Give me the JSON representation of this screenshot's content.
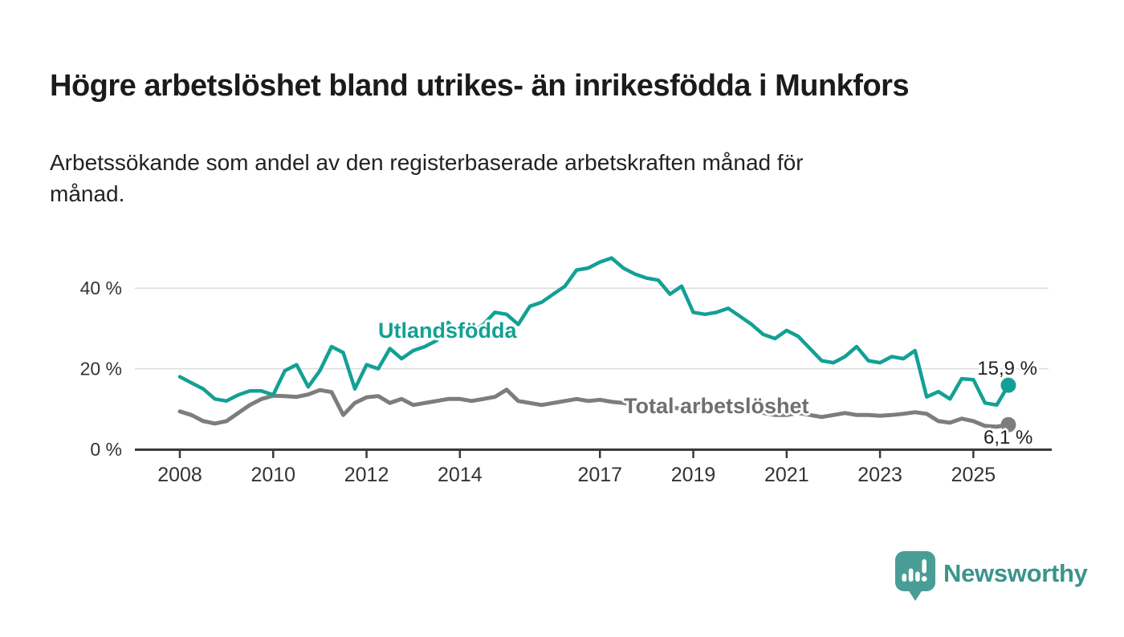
{
  "title": "Högre arbetslöshet bland utrikes- än inrikesfödda i Munkfors",
  "subtitle": "Arbetssökande som andel av den registerbaserade arbetskraften månad för månad.",
  "subtitle_lines": {
    "line1": "Arbetssökande som andel av den registerbaserade arbetskraften månad för",
    "line2": "månad."
  },
  "colors": {
    "foreign_line": "#13a094",
    "total_line": "#7d7d7d",
    "total_label": "#6f6f6f",
    "axis": "#3a3a3a",
    "tick_text": "#333333",
    "grid": "#dcdcdc",
    "end_label_text": "#1f1f1f",
    "brand_icon": "#4a9d96",
    "brand_text": "#3a948c",
    "title_text": "#1b1b1b"
  },
  "footer": {
    "brand": "Newsworthy"
  },
  "chart_data": {
    "type": "line",
    "title": "Högre arbetslöshet bland utrikes- än inrikesfödda i Munkfors",
    "subtitle": "Arbetssökande som andel av den registerbaserade arbetskraften månad för månad.",
    "xlabel": "",
    "ylabel": "",
    "ylim": [
      0,
      50
    ],
    "xlim": [
      2007.8,
      2026.4
    ],
    "grid": "horizontal",
    "legend_position": "inline-labels",
    "x_ticks": [
      2008,
      2010,
      2012,
      2014,
      2017,
      2019,
      2021,
      2023,
      2025
    ],
    "x_tick_labels": [
      "2008",
      "2010",
      "2012",
      "2014",
      "2017",
      "2019",
      "2021",
      "2023",
      "2025"
    ],
    "y_ticks": [
      0,
      20,
      40
    ],
    "y_tick_labels": [
      "0 %",
      "20 %",
      "40 %"
    ],
    "x": [
      2008.0,
      2008.25,
      2008.5,
      2008.75,
      2009.0,
      2009.25,
      2009.5,
      2009.75,
      2010.0,
      2010.25,
      2010.5,
      2010.75,
      2011.0,
      2011.25,
      2011.5,
      2011.75,
      2012.0,
      2012.25,
      2012.5,
      2012.75,
      2013.0,
      2013.25,
      2013.5,
      2013.75,
      2014.0,
      2014.25,
      2014.5,
      2014.75,
      2015.0,
      2015.25,
      2015.5,
      2015.75,
      2016.0,
      2016.25,
      2016.5,
      2016.75,
      2017.0,
      2017.25,
      2017.5,
      2017.75,
      2018.0,
      2018.25,
      2018.5,
      2018.75,
      2019.0,
      2019.25,
      2019.5,
      2019.75,
      2020.0,
      2020.25,
      2020.5,
      2020.75,
      2021.0,
      2021.25,
      2021.5,
      2021.75,
      2022.0,
      2022.25,
      2022.5,
      2022.75,
      2023.0,
      2023.25,
      2023.5,
      2023.75,
      2024.0,
      2024.25,
      2024.5,
      2024.75,
      2025.0,
      2025.25,
      2025.5,
      2025.75
    ],
    "series": [
      {
        "name": "Utlandsfödda",
        "color": "#13a094",
        "end_label": "15,9 %",
        "end_value": 15.9,
        "values": [
          18,
          16.5,
          15,
          12.5,
          12,
          13.5,
          14.5,
          14.5,
          13.5,
          19.5,
          21,
          15.5,
          19.5,
          25.5,
          24,
          15,
          21,
          20,
          25,
          22.5,
          24.5,
          25.5,
          27,
          31.5,
          28,
          29,
          31,
          34,
          33.5,
          31,
          35.5,
          36.5,
          38.5,
          40.5,
          44.5,
          45,
          46.5,
          47.5,
          45,
          43.5,
          42.5,
          42,
          38.5,
          40.5,
          34,
          33.5,
          34,
          35,
          33,
          31,
          28.5,
          27.5,
          29.5,
          28,
          25,
          22,
          21.5,
          23,
          25.5,
          22,
          21.5,
          23,
          22.5,
          24.5,
          13,
          14.3,
          12.5,
          17.5,
          17.3,
          11.5,
          11,
          15.9
        ]
      },
      {
        "name": "Total arbetslöshet",
        "color": "#7d7d7d",
        "end_label": "6,1 %",
        "end_value": 6.1,
        "values": [
          9.4,
          8.5,
          7,
          6.4,
          7,
          9,
          11,
          12.5,
          13.3,
          13.2,
          13,
          13.6,
          14.7,
          14.2,
          8.5,
          11.5,
          12.9,
          13.2,
          11.5,
          12.5,
          11,
          11.5,
          12,
          12.5,
          12.5,
          12,
          12.5,
          13,
          14.8,
          12,
          11.5,
          11,
          11.5,
          12,
          12.5,
          12,
          12.3,
          11.8,
          11.5,
          11,
          10.5,
          10,
          10.5,
          10,
          10.5,
          10,
          9.5,
          9.5,
          9,
          9.5,
          9,
          8.5,
          8.5,
          9,
          8.5,
          8,
          8.5,
          9,
          8.5,
          8.5,
          8.3,
          8.5,
          8.8,
          9.2,
          8.8,
          7,
          6.6,
          7.6,
          7,
          5.8,
          5.6,
          6.1
        ]
      }
    ]
  }
}
